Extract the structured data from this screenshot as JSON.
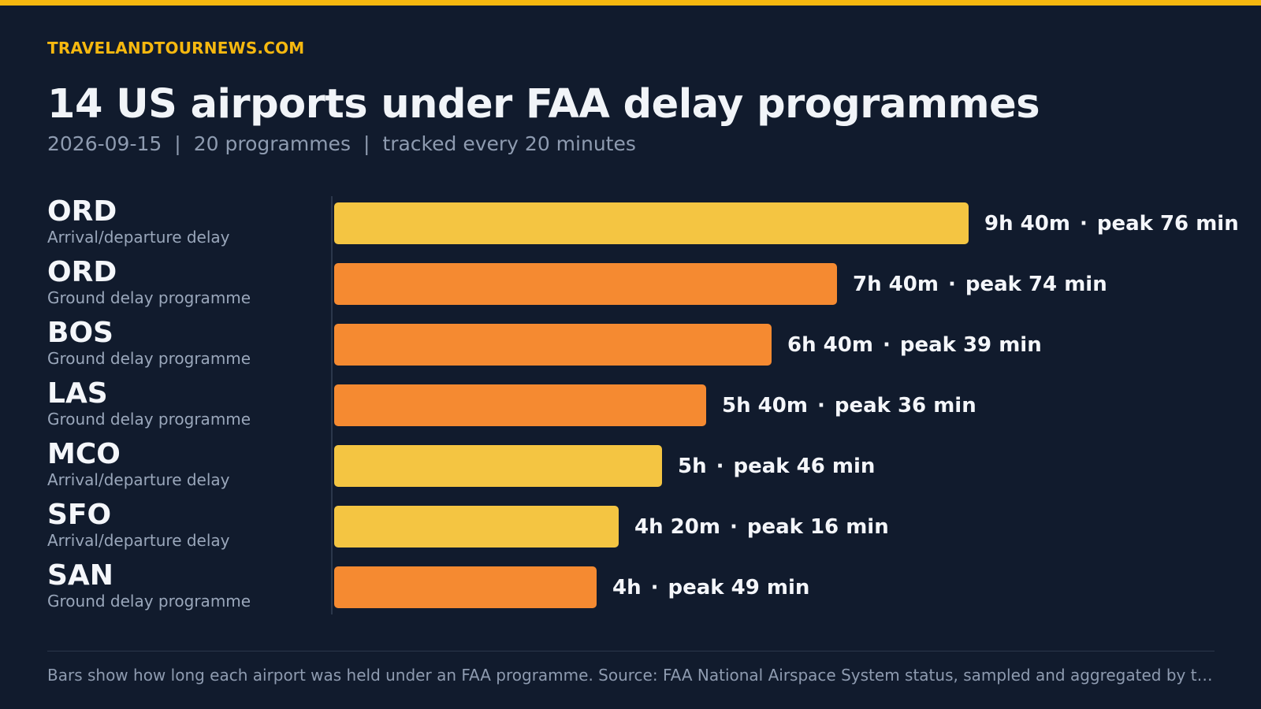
{
  "brand": "TRAVELANDTOURNEWS.COM",
  "title": "14 US airports under FAA delay programmes",
  "subtitle": {
    "date": "2026-09-15",
    "programmes": "20 programmes",
    "cadence": "tracked every 20 minutes",
    "separator": "|"
  },
  "colors": {
    "accent": "#f6b80f",
    "arrival_departure_delay": "#f4c542",
    "ground_delay_programme": "#f58a31",
    "background": "#111b2d"
  },
  "chart_data": {
    "type": "bar",
    "orientation": "horizontal",
    "unit": "minutes held under programme",
    "categories": [
      "ORD",
      "ORD",
      "BOS",
      "LAS",
      "MCO",
      "SFO",
      "SAN"
    ],
    "values": [
      580,
      460,
      400,
      340,
      300,
      260,
      240
    ],
    "programme_types": [
      "Arrival/departure delay",
      "Ground delay programme",
      "Ground delay programme",
      "Ground delay programme",
      "Arrival/departure delay",
      "Arrival/departure delay",
      "Ground delay programme"
    ],
    "duration_labels": [
      "9h 40m",
      "7h 40m",
      "6h 40m",
      "5h 40m",
      "5h",
      "4h 20m",
      "4h"
    ],
    "peak_labels": [
      "peak 76 min",
      "peak 74 min",
      "peak 39 min",
      "peak 36 min",
      "peak 46 min",
      "peak 16 min",
      "peak 49 min"
    ],
    "peak_minutes": [
      76,
      74,
      39,
      36,
      46,
      16,
      49
    ],
    "value_separator": "·",
    "xlim": [
      0,
      580
    ]
  },
  "footnote": "Bars show how long each airport was held under an FAA programme. Source: FAA National Airspace System status, sampled and aggregated by travelandtour…"
}
